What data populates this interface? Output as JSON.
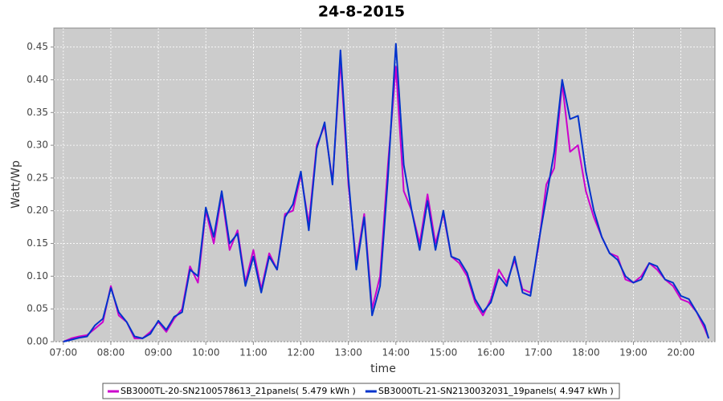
{
  "chart_data": {
    "type": "line",
    "title": "24-8-2015",
    "xlabel": "time",
    "ylabel": "Watt/Wp",
    "x": [
      420,
      430,
      440,
      450,
      460,
      470,
      480,
      490,
      500,
      510,
      520,
      530,
      540,
      550,
      560,
      570,
      580,
      590,
      600,
      610,
      620,
      630,
      640,
      650,
      660,
      670,
      680,
      690,
      700,
      710,
      720,
      730,
      740,
      750,
      760,
      770,
      780,
      790,
      800,
      810,
      820,
      830,
      840,
      850,
      860,
      870,
      880,
      890,
      900,
      910,
      920,
      930,
      940,
      950,
      960,
      970,
      980,
      990,
      1000,
      1010,
      1020,
      1030,
      1040,
      1050,
      1060,
      1070,
      1080,
      1090,
      1100,
      1110,
      1120,
      1130,
      1140,
      1150,
      1160,
      1170,
      1180,
      1190,
      1200,
      1210,
      1220,
      1230,
      1235
    ],
    "series": [
      {
        "name": "SB3000TL-20-SN2100578613_21panels( 5.479 kWh )",
        "color": "#cc00cc",
        "values": [
          0.0,
          0.005,
          0.008,
          0.01,
          0.02,
          0.03,
          0.085,
          0.04,
          0.03,
          0.005,
          0.005,
          0.015,
          0.03,
          0.015,
          0.035,
          0.05,
          0.115,
          0.09,
          0.2,
          0.15,
          0.225,
          0.14,
          0.17,
          0.09,
          0.14,
          0.08,
          0.135,
          0.11,
          0.195,
          0.2,
          0.255,
          0.18,
          0.3,
          0.33,
          0.245,
          0.43,
          0.24,
          0.12,
          0.195,
          0.05,
          0.1,
          0.27,
          0.42,
          0.23,
          0.2,
          0.15,
          0.225,
          0.15,
          0.195,
          0.13,
          0.12,
          0.1,
          0.06,
          0.04,
          0.065,
          0.11,
          0.09,
          0.125,
          0.08,
          0.075,
          0.145,
          0.24,
          0.265,
          0.395,
          0.29,
          0.3,
          0.23,
          0.19,
          0.16,
          0.135,
          0.13,
          0.095,
          0.09,
          0.1,
          0.12,
          0.11,
          0.095,
          0.085,
          0.065,
          0.06,
          0.045,
          0.02,
          0.005
        ]
      },
      {
        "name": "SB3000TL-21-SN2130032031_19panels( 4.947 kWh )",
        "color": "#0033cc",
        "values": [
          0.0,
          0.003,
          0.006,
          0.008,
          0.025,
          0.035,
          0.082,
          0.045,
          0.03,
          0.008,
          0.005,
          0.012,
          0.032,
          0.018,
          0.038,
          0.045,
          0.11,
          0.1,
          0.205,
          0.16,
          0.23,
          0.15,
          0.165,
          0.085,
          0.13,
          0.075,
          0.13,
          0.11,
          0.19,
          0.21,
          0.26,
          0.17,
          0.295,
          0.335,
          0.24,
          0.445,
          0.25,
          0.11,
          0.19,
          0.04,
          0.085,
          0.25,
          0.455,
          0.27,
          0.2,
          0.14,
          0.215,
          0.14,
          0.2,
          0.13,
          0.125,
          0.105,
          0.065,
          0.045,
          0.06,
          0.1,
          0.085,
          0.13,
          0.075,
          0.07,
          0.15,
          0.22,
          0.29,
          0.4,
          0.34,
          0.345,
          0.26,
          0.2,
          0.16,
          0.135,
          0.125,
          0.1,
          0.09,
          0.095,
          0.12,
          0.115,
          0.095,
          0.09,
          0.07,
          0.065,
          0.045,
          0.025,
          0.005
        ]
      }
    ],
    "xlim": [
      408,
      1243
    ],
    "xticks": [
      {
        "value": 420,
        "label": "07:00"
      },
      {
        "value": 480,
        "label": "08:00"
      },
      {
        "value": 540,
        "label": "09:00"
      },
      {
        "value": 600,
        "label": "10:00"
      },
      {
        "value": 660,
        "label": "11:00"
      },
      {
        "value": 720,
        "label": "12:00"
      },
      {
        "value": 780,
        "label": "13:00"
      },
      {
        "value": 840,
        "label": "14:00"
      },
      {
        "value": 900,
        "label": "15:00"
      },
      {
        "value": 960,
        "label": "16:00"
      },
      {
        "value": 1020,
        "label": "17:00"
      },
      {
        "value": 1080,
        "label": "18:00"
      },
      {
        "value": 1140,
        "label": "19:00"
      },
      {
        "value": 1200,
        "label": "20:00"
      }
    ],
    "ylim": [
      0,
      0.479
    ],
    "yticks": [
      {
        "value": 0,
        "label": "0.00"
      },
      {
        "value": 0.05,
        "label": "0.05"
      },
      {
        "value": 0.1,
        "label": "0.10"
      },
      {
        "value": 0.15,
        "label": "0.15"
      },
      {
        "value": 0.2,
        "label": "0.20"
      },
      {
        "value": 0.25,
        "label": "0.25"
      },
      {
        "value": 0.3,
        "label": "0.30"
      },
      {
        "value": 0.35,
        "label": "0.35"
      },
      {
        "value": 0.4,
        "label": "0.40"
      },
      {
        "value": 0.45,
        "label": "0.45"
      }
    ],
    "grid": true
  }
}
